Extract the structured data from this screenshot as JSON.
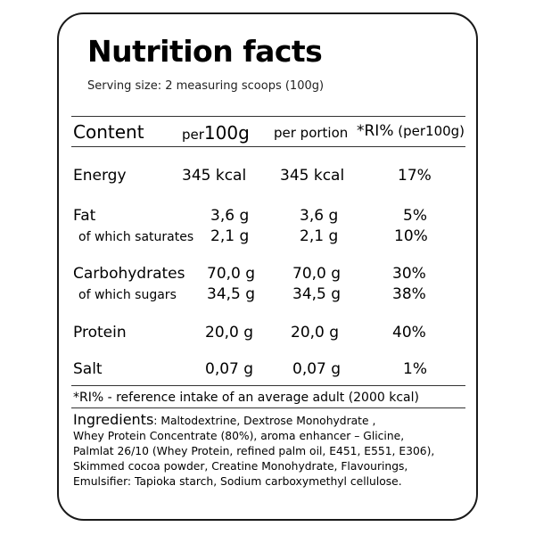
{
  "title": "Nutrition facts",
  "serving": "Serving size: 2 measuring scoops (100g)",
  "table": {
    "header": {
      "content": "Content",
      "per_small": "per",
      "per_big": "100g",
      "portion": "per portion",
      "ri_big": "*RI%",
      "ri_small": " (per100g)"
    },
    "rows": [
      {
        "name": "Energy",
        "per100": "345 kcal",
        "portion": "345 kcal",
        "ri": "17%"
      },
      {
        "name": "Fat",
        "per100": "3,6 g",
        "portion": "3,6 g",
        "ri": "5%"
      },
      {
        "name": "of which saturates",
        "per100": "2,1 g",
        "portion": "2,1 g",
        "ri": "10%"
      },
      {
        "name": "Carbohydrates",
        "per100": "70,0 g",
        "portion": "70,0 g",
        "ri": "30%"
      },
      {
        "name": "of which sugars",
        "per100": "34,5 g",
        "portion": "34,5 g",
        "ri": "38%"
      },
      {
        "name": "Protein",
        "per100": "20,0 g",
        "portion": "20,0 g",
        "ri": "40%"
      },
      {
        "name": "Salt",
        "per100": "0,07 g",
        "portion": "0,07 g",
        "ri": "1%"
      }
    ]
  },
  "footnote": "*RI% - reference intake of an average adult (2000 kcal)",
  "ingredients": {
    "heading": "Ingredients",
    "lines": [
      ": Maltodextrine,  Dextrose Monohydrate ,",
      "Whey Protein Concentrate (80%),  aroma enhancer – Glicine,",
      "Palmlat 26/10 (Whey Protein, refined palm oil, E451, E551, E306),",
      "Skimmed cocoa powder, Creatine Monohydrate, Flavourings,",
      "Emulsifier: Tapioka starch, Sodium carboxymethyl cellulose."
    ]
  }
}
